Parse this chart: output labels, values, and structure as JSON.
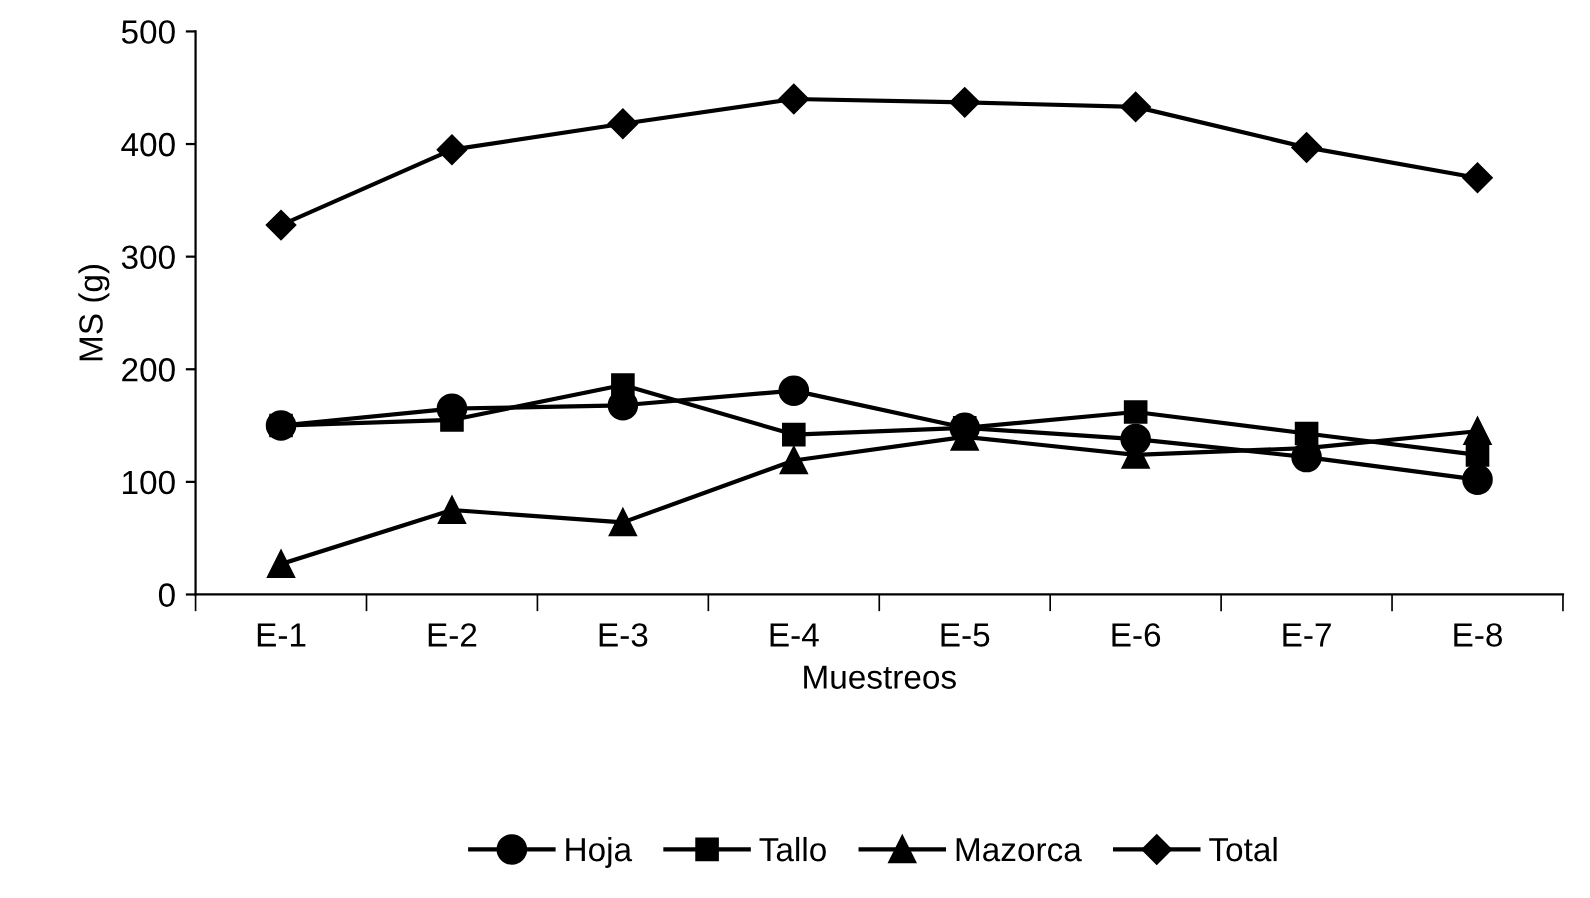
{
  "chart_data": {
    "type": "line",
    "xlabel": "Muestreos",
    "ylabel": "MS (g)",
    "categories": [
      "E-1",
      "E-2",
      "E-3",
      "E-4",
      "E-5",
      "E-6",
      "E-7",
      "E-8"
    ],
    "series": [
      {
        "name": "Hoja",
        "color": "#000000",
        "marker": "circle",
        "values": [
          150,
          165,
          168,
          181,
          148,
          138,
          122,
          102
        ]
      },
      {
        "name": "Tallo",
        "color": "#000000",
        "marker": "square",
        "values": [
          150,
          155,
          186,
          142,
          148,
          162,
          143,
          124
        ]
      },
      {
        "name": "Mazorca",
        "color": "#000000",
        "marker": "triangle",
        "values": [
          27,
          75,
          64,
          119,
          140,
          124,
          130,
          145
        ]
      },
      {
        "name": "Total",
        "color": "#000000",
        "marker": "diamond",
        "values": [
          328,
          395,
          418,
          440,
          437,
          433,
          397,
          370
        ]
      }
    ],
    "ylim": [
      0,
      500
    ],
    "yticks": [
      0,
      100,
      200,
      300,
      400,
      500
    ],
    "grid": false,
    "legend": "bottom"
  }
}
